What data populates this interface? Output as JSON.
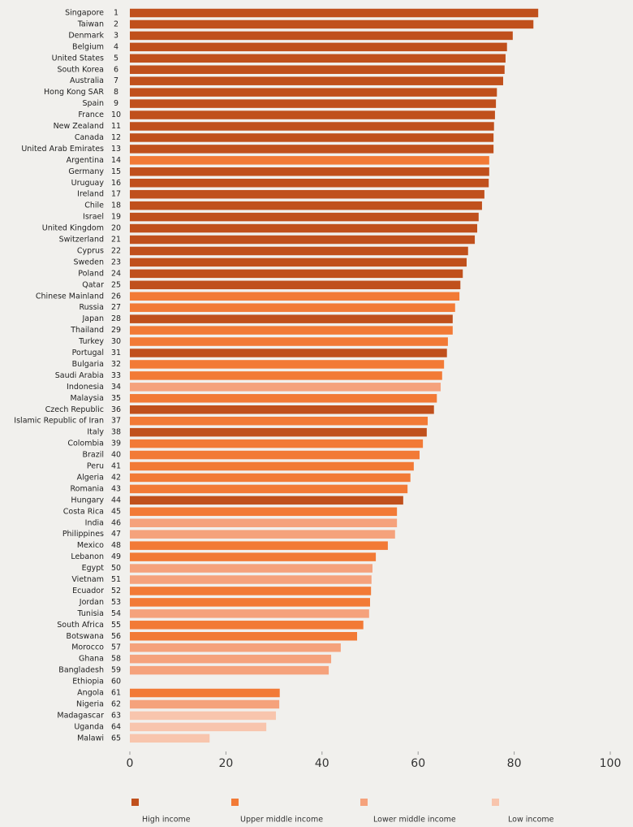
{
  "chart_data": {
    "type": "hbar",
    "categories": [
      "Singapore",
      "Taiwan",
      "Denmark",
      "Belgium",
      "United States",
      "South Korea",
      "Australia",
      "Hong Kong SAR",
      "Spain",
      "France",
      "New Zealand",
      "Canada",
      "United Arab Emirates",
      "Argentina",
      "Germany",
      "Uruguay",
      "Ireland",
      "Chile",
      "Israel",
      "United Kingdom",
      "Switzerland",
      "Cyprus",
      "Sweden",
      "Poland",
      "Qatar",
      "Chinese Mainland",
      "Russia",
      "Japan",
      "Thailand",
      "Turkey",
      "Portugal",
      "Bulgaria",
      "Saudi Arabia",
      "Indonesia",
      "Malaysia",
      "Czech Republic",
      "Islamic Republic of Iran",
      "Italy",
      "Colombia",
      "Brazil",
      "Peru",
      "Algeria",
      "Romania",
      "Hungary",
      "Costa Rica",
      "India",
      "Philippines",
      "Mexico",
      "Lebanon",
      "Egypt",
      "Vietnam",
      "Ecuador",
      "Jordan",
      "Tunisia",
      "South Africa",
      "Botswana",
      "Morocco",
      "Ghana",
      "Bangladesh",
      "Ethiopia",
      "Angola",
      "Nigeria",
      "Madagascar",
      "Uganda",
      "Malawi"
    ],
    "ranks": [
      1,
      2,
      3,
      4,
      5,
      6,
      7,
      8,
      9,
      10,
      11,
      12,
      13,
      14,
      15,
      16,
      17,
      18,
      19,
      20,
      21,
      22,
      23,
      24,
      25,
      26,
      27,
      28,
      29,
      30,
      31,
      32,
      33,
      34,
      35,
      36,
      37,
      38,
      39,
      40,
      41,
      42,
      43,
      44,
      45,
      46,
      47,
      48,
      49,
      50,
      51,
      52,
      53,
      54,
      55,
      56,
      57,
      58,
      59,
      60,
      61,
      62,
      63,
      64,
      65
    ],
    "values": [
      85.0,
      84.0,
      79.7,
      78.5,
      78.2,
      78.0,
      77.7,
      76.4,
      76.2,
      76.0,
      75.8,
      75.7,
      75.7,
      74.8,
      74.8,
      74.7,
      73.8,
      73.3,
      72.6,
      72.3,
      71.8,
      70.4,
      70.1,
      69.3,
      68.8,
      68.6,
      67.7,
      67.2,
      67.2,
      66.2,
      66.0,
      65.4,
      65.0,
      64.7,
      63.9,
      63.3,
      62.0,
      61.8,
      61.0,
      60.3,
      59.1,
      58.4,
      57.8,
      56.9,
      55.6,
      55.6,
      55.2,
      53.7,
      51.2,
      50.5,
      50.3,
      50.2,
      50.0,
      49.8,
      48.6,
      47.3,
      43.9,
      41.9,
      41.4,
      null,
      31.2,
      31.1,
      30.4,
      28.4,
      16.6
    ],
    "groups": [
      0,
      0,
      0,
      0,
      0,
      0,
      0,
      0,
      0,
      0,
      0,
      0,
      0,
      1,
      0,
      0,
      0,
      0,
      0,
      0,
      0,
      0,
      0,
      0,
      0,
      1,
      1,
      0,
      1,
      1,
      0,
      1,
      1,
      2,
      1,
      0,
      1,
      0,
      1,
      1,
      1,
      1,
      1,
      0,
      1,
      2,
      2,
      1,
      1,
      2,
      2,
      1,
      1,
      2,
      1,
      1,
      2,
      2,
      2,
      3,
      1,
      2,
      3,
      3,
      3
    ],
    "income_groups": [
      {
        "name": "High income",
        "color": "#c0501c"
      },
      {
        "name": "Upper middle income",
        "color": "#f27a36"
      },
      {
        "name": "Lower middle income",
        "color": "#f5a27c"
      },
      {
        "name": "Low income",
        "color": "#f8c5ad"
      }
    ],
    "xlim": [
      0,
      100
    ],
    "xticks": [
      0,
      20,
      40,
      60,
      80,
      100
    ]
  }
}
